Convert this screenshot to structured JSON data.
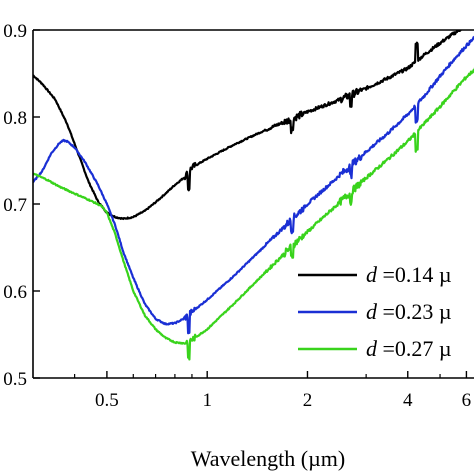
{
  "chart_data": {
    "type": "line",
    "xlabel": "Wavelength (µm)",
    "ylabel": "",
    "x_scale": "log",
    "xlim": [
      0.3,
      6.5
    ],
    "ylim": [
      0.5,
      0.9
    ],
    "x_ticks": [
      {
        "value": 0.5,
        "label": "0.5"
      },
      {
        "value": 1,
        "label": "1"
      },
      {
        "value": 2,
        "label": "2"
      },
      {
        "value": 4,
        "label": "4"
      },
      {
        "value": 6,
        "label": "6"
      }
    ],
    "y_ticks": [
      {
        "value": 0.5,
        "label": "0.5"
      },
      {
        "value": 0.6,
        "label": "0.6"
      },
      {
        "value": 0.7,
        "label": "0.7"
      },
      {
        "value": 0.8,
        "label": "0.8"
      },
      {
        "value": 0.9,
        "label": "0.9"
      }
    ],
    "legend_position": "bottom-right",
    "series": [
      {
        "name": "d =0.14 µ",
        "color": "#000000",
        "points": [
          [
            0.3,
            0.848
          ],
          [
            0.32,
            0.838
          ],
          [
            0.35,
            0.82
          ],
          [
            0.38,
            0.792
          ],
          [
            0.41,
            0.758
          ],
          [
            0.44,
            0.726
          ],
          [
            0.47,
            0.703
          ],
          [
            0.5,
            0.69
          ],
          [
            0.53,
            0.685
          ],
          [
            0.56,
            0.683
          ],
          [
            0.6,
            0.685
          ],
          [
            0.65,
            0.692
          ],
          [
            0.7,
            0.702
          ],
          [
            0.75,
            0.712
          ],
          [
            0.8,
            0.722
          ],
          [
            0.85,
            0.73
          ],
          [
            0.9,
            0.742
          ],
          [
            1.0,
            0.752
          ],
          [
            1.2,
            0.768
          ],
          [
            1.4,
            0.78
          ],
          [
            1.6,
            0.79
          ],
          [
            1.8,
            0.798
          ],
          [
            2.0,
            0.806
          ],
          [
            2.5,
            0.82
          ],
          [
            3.0,
            0.833
          ],
          [
            3.5,
            0.845
          ],
          [
            4.0,
            0.856
          ],
          [
            4.5,
            0.872
          ],
          [
            5.0,
            0.885
          ],
          [
            5.5,
            0.896
          ],
          [
            6.0,
            0.905
          ],
          [
            6.5,
            0.91
          ]
        ]
      },
      {
        "name": "d =0.23 µ",
        "color": "#1a2fd4",
        "points": [
          [
            0.3,
            0.725
          ],
          [
            0.32,
            0.738
          ],
          [
            0.34,
            0.758
          ],
          [
            0.36,
            0.77
          ],
          [
            0.37,
            0.773
          ],
          [
            0.38,
            0.772
          ],
          [
            0.4,
            0.765
          ],
          [
            0.43,
            0.748
          ],
          [
            0.47,
            0.722
          ],
          [
            0.5,
            0.7
          ],
          [
            0.53,
            0.675
          ],
          [
            0.56,
            0.645
          ],
          [
            0.6,
            0.615
          ],
          [
            0.65,
            0.585
          ],
          [
            0.7,
            0.568
          ],
          [
            0.75,
            0.562
          ],
          [
            0.8,
            0.563
          ],
          [
            0.85,
            0.568
          ],
          [
            0.9,
            0.576
          ],
          [
            1.0,
            0.59
          ],
          [
            1.2,
            0.617
          ],
          [
            1.5,
            0.653
          ],
          [
            1.8,
            0.683
          ],
          [
            2.0,
            0.7
          ],
          [
            2.5,
            0.733
          ],
          [
            3.0,
            0.76
          ],
          [
            3.5,
            0.782
          ],
          [
            4.0,
            0.803
          ],
          [
            4.5,
            0.825
          ],
          [
            5.0,
            0.847
          ],
          [
            5.5,
            0.866
          ],
          [
            6.0,
            0.882
          ],
          [
            6.5,
            0.895
          ]
        ]
      },
      {
        "name": "d =0.27 µ",
        "color": "#39d31c",
        "points": [
          [
            0.3,
            0.735
          ],
          [
            0.33,
            0.728
          ],
          [
            0.36,
            0.72
          ],
          [
            0.4,
            0.712
          ],
          [
            0.44,
            0.705
          ],
          [
            0.48,
            0.698
          ],
          [
            0.5,
            0.69
          ],
          [
            0.53,
            0.665
          ],
          [
            0.56,
            0.635
          ],
          [
            0.6,
            0.6
          ],
          [
            0.65,
            0.572
          ],
          [
            0.7,
            0.556
          ],
          [
            0.75,
            0.546
          ],
          [
            0.8,
            0.541
          ],
          [
            0.85,
            0.54
          ],
          [
            0.9,
            0.544
          ],
          [
            1.0,
            0.556
          ],
          [
            1.2,
            0.585
          ],
          [
            1.5,
            0.622
          ],
          [
            1.8,
            0.652
          ],
          [
            2.0,
            0.668
          ],
          [
            2.5,
            0.702
          ],
          [
            3.0,
            0.73
          ],
          [
            3.5,
            0.752
          ],
          [
            4.0,
            0.772
          ],
          [
            4.5,
            0.793
          ],
          [
            5.0,
            0.812
          ],
          [
            5.5,
            0.83
          ],
          [
            6.0,
            0.846
          ],
          [
            6.5,
            0.858
          ]
        ]
      }
    ]
  }
}
